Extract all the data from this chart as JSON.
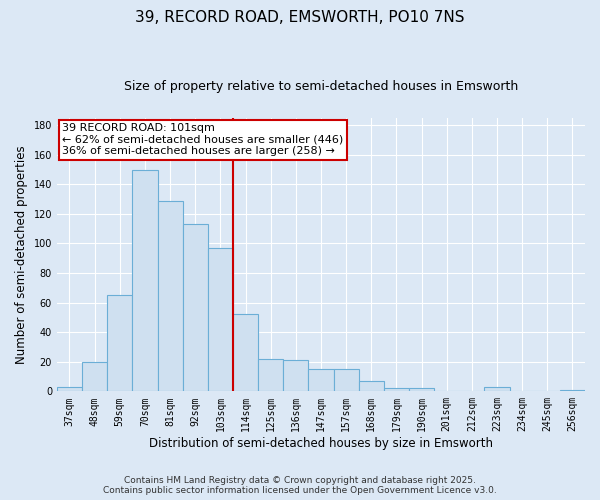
{
  "title": "39, RECORD ROAD, EMSWORTH, PO10 7NS",
  "subtitle": "Size of property relative to semi-detached houses in Emsworth",
  "xlabel": "Distribution of semi-detached houses by size in Emsworth",
  "ylabel": "Number of semi-detached properties",
  "bar_labels": [
    "37sqm",
    "48sqm",
    "59sqm",
    "70sqm",
    "81sqm",
    "92sqm",
    "103sqm",
    "114sqm",
    "125sqm",
    "136sqm",
    "147sqm",
    "157sqm",
    "168sqm",
    "179sqm",
    "190sqm",
    "201sqm",
    "212sqm",
    "223sqm",
    "234sqm",
    "245sqm",
    "256sqm"
  ],
  "bar_values": [
    3,
    20,
    65,
    150,
    129,
    113,
    97,
    52,
    22,
    21,
    15,
    15,
    7,
    2,
    2,
    0,
    0,
    3,
    0,
    0,
    1
  ],
  "bar_color": "#cfe0f0",
  "bar_edge_color": "#6baed6",
  "vline_color": "#cc0000",
  "vline_x_index": 6,
  "annotation_title": "39 RECORD ROAD: 101sqm",
  "annotation_line1": "← 62% of semi-detached houses are smaller (446)",
  "annotation_line2": "36% of semi-detached houses are larger (258) →",
  "annotation_box_color": "#ffffff",
  "annotation_box_edge": "#cc0000",
  "ylim": [
    0,
    185
  ],
  "yticks": [
    0,
    20,
    40,
    60,
    80,
    100,
    120,
    140,
    160,
    180
  ],
  "background_color": "#dce8f5",
  "plot_bg_color": "#dce8f5",
  "grid_color": "#ffffff",
  "footer_line1": "Contains HM Land Registry data © Crown copyright and database right 2025.",
  "footer_line2": "Contains public sector information licensed under the Open Government Licence v3.0.",
  "title_fontsize": 11,
  "subtitle_fontsize": 9,
  "axis_label_fontsize": 8.5,
  "tick_fontsize": 7,
  "footer_fontsize": 6.5,
  "annotation_fontsize": 8
}
